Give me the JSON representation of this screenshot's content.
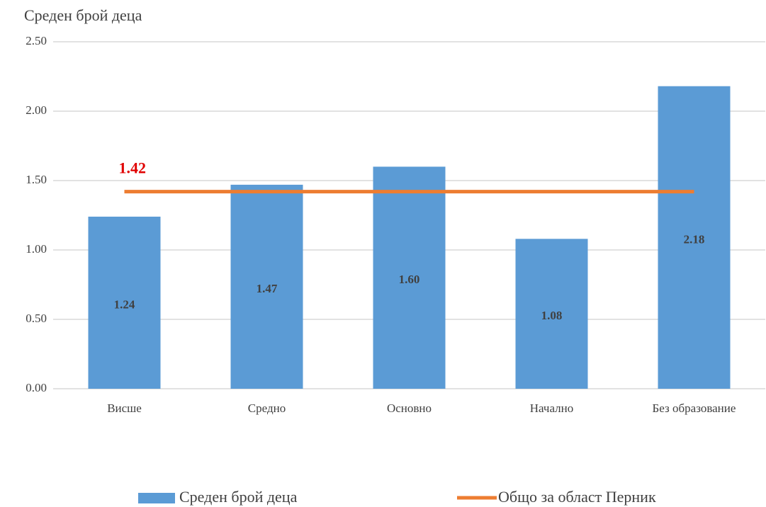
{
  "chart_data": {
    "type": "bar",
    "y_axis_label": "Среден брой деца",
    "categories": [
      "Висше",
      "Средно",
      "Основно",
      "Начално",
      "Без образование"
    ],
    "series": [
      {
        "name": "Среден брой деца",
        "type": "bar",
        "color": "#5b9bd5",
        "values": [
          1.24,
          1.47,
          1.6,
          1.08,
          2.18
        ],
        "value_labels": [
          "1.24",
          "1.47",
          "1.60",
          "1.08",
          "2.18"
        ]
      },
      {
        "name": "Общо за област Перник",
        "type": "line",
        "color": "#ed7d31",
        "values": [
          1.42,
          1.42,
          1.42,
          1.42,
          1.42
        ],
        "label_color": "#e00000"
      }
    ],
    "ylim": [
      0,
      2.5
    ],
    "yticks": [
      {
        "value": 0,
        "label": "0.00"
      },
      {
        "value": 0.5,
        "label": "0.50"
      },
      {
        "value": 1,
        "label": "1.00"
      },
      {
        "value": 1.5,
        "label": "1.50"
      },
      {
        "value": 2,
        "label": "2.00"
      },
      {
        "value": 2.5,
        "label": "2.50"
      }
    ],
    "grid": true,
    "legend": "bottom"
  }
}
